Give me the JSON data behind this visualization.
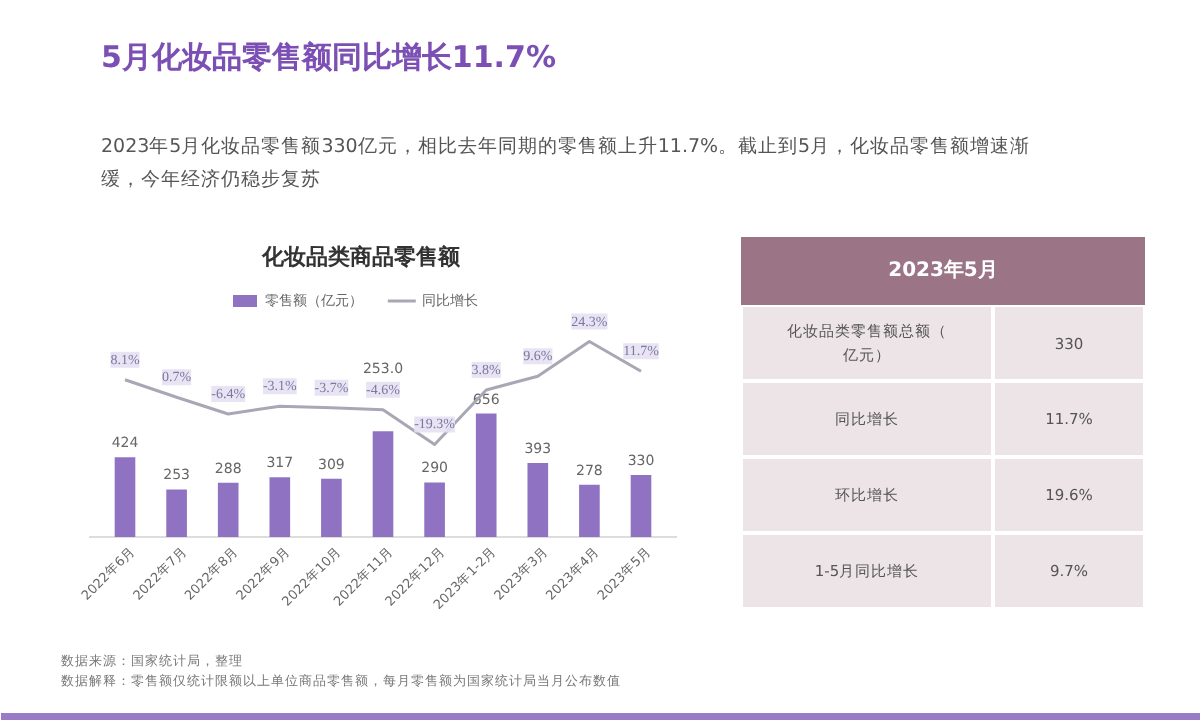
{
  "chart_data": [
    {
      "type": "other",
      "title": "5月化妆品零售额同比增长11.7%",
      "annotations": [
        "2023年5月化妆品零售额330亿元，相比去年同期的零售额上升11.7%。截止到5月，化妆品零售额增速渐缓，今年经济仍稳步复苏",
        "数据来源：国家统计局，整理",
        "数据解释：零售额仅统计限额以上单位商品零售额，每月零售额为国家统计局当月公布数值"
      ]
    },
    {
      "type": "bar",
      "title": "化妆品类商品零售额",
      "categories": [
        "2022年6月",
        "2022年7月",
        "2022年8月",
        "2022年9月",
        "2022年10月",
        "2022年11月",
        "2022年12月",
        "2023年1-2月",
        "2023年3月",
        "2023年4月",
        "2023年5月"
      ],
      "series": [
        {
          "name": "零售额（亿元）",
          "type": "bar",
          "color": "#8f73c2",
          "values": [
            424,
            253,
            288,
            317,
            309,
            562,
            290,
            656,
            393,
            278,
            330
          ],
          "value_labels": [
            "424",
            "253",
            "288",
            "317",
            "309",
            null,
            "290",
            "656",
            "393",
            "278",
            "330"
          ]
        },
        {
          "name": "同比增长",
          "type": "line",
          "axis": "y2",
          "color": "#a9a7b5",
          "values": [
            8.1,
            0.7,
            -6.4,
            -3.1,
            -3.7,
            -4.6,
            -19.3,
            3.8,
            9.6,
            24.3,
            11.7
          ],
          "value_labels": [
            "8.1%",
            "0.7%",
            "-6.4%",
            "-3.1%",
            "-3.7%",
            "-4.6%",
            "-19.3%",
            "3.8%",
            "9.6%",
            "24.3%",
            "11.7%"
          ]
        }
      ],
      "legend": "top",
      "tick_labels": "x",
      "annotations": [
        "253.0"
      ]
    },
    {
      "type": "other",
      "title": "2023年5月",
      "annotations": [
        "化妆品类零售额总额（亿元）",
        "330",
        "同比增长",
        "11.7%",
        "环比增长",
        "19.6%",
        "1-5月同比增长",
        "9.7%"
      ]
    }
  ]
}
